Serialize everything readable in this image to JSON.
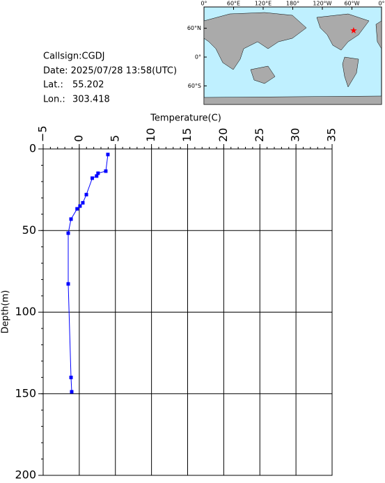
{
  "chart_data": {
    "type": "line",
    "x_label": "Temperature(C)",
    "y_label": "Depth(m)",
    "xlim": [
      -5,
      35
    ],
    "xticks": [
      {
        "value": -5,
        "label": "−5"
      },
      0,
      5,
      10,
      15,
      20,
      25,
      30,
      35
    ],
    "x_minor_step": 1,
    "ylim": [
      0,
      200
    ],
    "yticks": [
      0,
      50,
      100,
      150,
      200
    ],
    "y_minor_step": 10,
    "grid": true,
    "series": [
      {
        "color": "#0000ff",
        "x": [
          3.96,
          3.67,
          2.6,
          2.4,
          1.8,
          0.98,
          0.49,
          0.1,
          -0.3,
          -1.14,
          -1.53,
          -1.53,
          -1.14,
          -1.05
        ],
        "values": [
          3.4,
          13.6,
          14.9,
          16.6,
          17.9,
          28,
          33,
          35,
          36.7,
          43,
          51.6,
          82.7,
          140,
          148.8
        ]
      }
    ]
  },
  "info": {
    "callsign": "Callsign:CGDJ",
    "date": "Date:  2025/07/28 13:58(UTC)",
    "lat_label": "Lat.:",
    "lat": 55.202,
    "lon_label": "Lon.:",
    "lon": 303.418
  },
  "map": {
    "lon_ticks": [
      {
        "value": 0,
        "label": "0°"
      },
      {
        "value": 60,
        "label": "60°E"
      },
      {
        "value": 120,
        "label": "120°E"
      },
      {
        "value": 180,
        "label": "180°"
      },
      {
        "value": 240,
        "label": "120°W"
      },
      {
        "value": 300,
        "label": "60°W"
      },
      {
        "value": 360,
        "label": "0°"
      }
    ],
    "lat_ticks": [
      {
        "value": 60,
        "label": "60°N"
      },
      {
        "value": 0,
        "label": "0°"
      },
      {
        "value": -60,
        "label": "60°S"
      }
    ],
    "marker_color": "#ff0000"
  }
}
